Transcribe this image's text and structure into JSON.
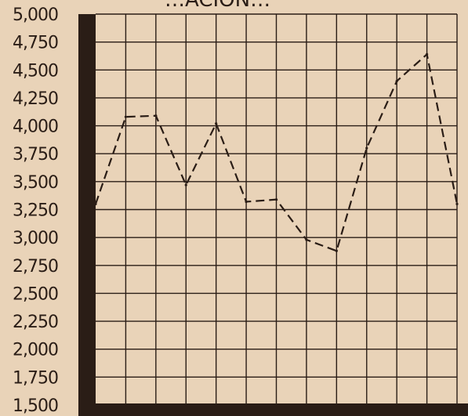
{
  "chart_data": {
    "type": "line",
    "title_fragment": "…ACION…",
    "y_tick_labels": [
      "5,000",
      "4,750",
      "4,500",
      "4,250",
      "4,000",
      "3,750",
      "3,500",
      "3,250",
      "3,000",
      "2,750",
      "2,500",
      "2,250",
      "2,000",
      "1,750",
      "1,500"
    ],
    "ylim": [
      1500,
      5000
    ],
    "grid": true,
    "line_style": "dashed",
    "series": [
      {
        "x": [
          0,
          1,
          2,
          3,
          4,
          5,
          6,
          7,
          8,
          9,
          10,
          11,
          12
        ],
        "values": [
          3300,
          4080,
          4090,
          3470,
          4020,
          3320,
          3340,
          2980,
          2880,
          3800,
          4400,
          4640,
          3300
        ]
      }
    ],
    "colors": {
      "background": "#e9d3b8",
      "ink": "#2a1d16"
    }
  }
}
